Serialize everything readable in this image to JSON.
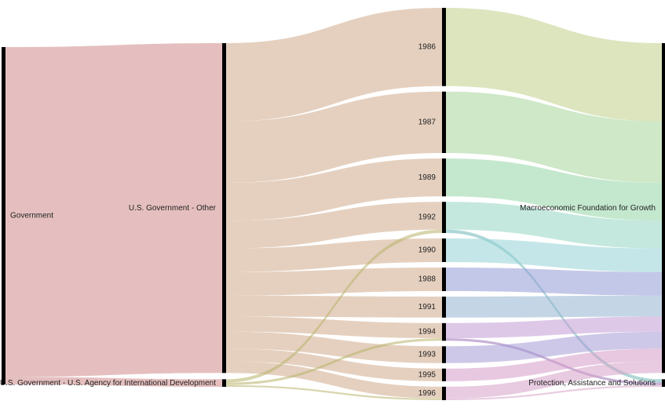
{
  "chart_data": {
    "type": "sankey",
    "nodes": [
      {
        "id": "gov",
        "label": "Government",
        "column": 0
      },
      {
        "id": "usg_other",
        "label": "U.S. Government - Other",
        "column": 1
      },
      {
        "id": "usaid",
        "label": "U.S. Government - U.S. Agency for International Development",
        "column": 1
      },
      {
        "id": "y1986",
        "label": "1986",
        "column": 2
      },
      {
        "id": "y1987",
        "label": "1987",
        "column": 2
      },
      {
        "id": "y1989",
        "label": "1989",
        "column": 2
      },
      {
        "id": "y1992",
        "label": "1992",
        "column": 2
      },
      {
        "id": "y1990",
        "label": "1990",
        "column": 2
      },
      {
        "id": "y1988",
        "label": "1988",
        "column": 2
      },
      {
        "id": "y1991",
        "label": "1991",
        "column": 2
      },
      {
        "id": "y1994",
        "label": "1994",
        "column": 2
      },
      {
        "id": "y1993",
        "label": "1993",
        "column": 2
      },
      {
        "id": "y1995",
        "label": "1995",
        "column": 2
      },
      {
        "id": "y1996",
        "label": "1996",
        "column": 2
      },
      {
        "id": "macro",
        "label": "Macroeconomic Foundation for Growth",
        "column": 3
      },
      {
        "id": "protect",
        "label": "Protection, Assistance and Solutions",
        "column": 3
      }
    ],
    "links": [
      {
        "source": "gov",
        "target": "usg_other",
        "value": 392,
        "color": "#cf8b8b"
      },
      {
        "source": "gov",
        "target": "usaid",
        "value": 9,
        "color": "#cf8b8b"
      },
      {
        "source": "usg_other",
        "target": "y1986",
        "value": 93,
        "color": "#cfa98b"
      },
      {
        "source": "usg_other",
        "target": "y1987",
        "value": 73,
        "color": "#cfa98b"
      },
      {
        "source": "usg_other",
        "target": "y1989",
        "value": 45,
        "color": "#cfa98b"
      },
      {
        "source": "usg_other",
        "target": "y1992",
        "value": 33,
        "color": "#cfa98b"
      },
      {
        "source": "usg_other",
        "target": "y1990",
        "value": 28,
        "color": "#cfa98b"
      },
      {
        "source": "usg_other",
        "target": "y1988",
        "value": 28,
        "color": "#cfa98b"
      },
      {
        "source": "usg_other",
        "target": "y1991",
        "value": 25,
        "color": "#cfa98b"
      },
      {
        "source": "usg_other",
        "target": "y1994",
        "value": 18,
        "color": "#cfa98b"
      },
      {
        "source": "usg_other",
        "target": "y1993",
        "value": 20,
        "color": "#cfa98b"
      },
      {
        "source": "usg_other",
        "target": "y1995",
        "value": 15,
        "color": "#cfa98b"
      },
      {
        "source": "usg_other",
        "target": "y1996",
        "value": 14,
        "color": "#cfa98b"
      },
      {
        "source": "usaid",
        "target": "y1992",
        "value": 4,
        "color": "#b8b36a"
      },
      {
        "source": "usaid",
        "target": "y1994",
        "value": 3,
        "color": "#b8b36a"
      },
      {
        "source": "usaid",
        "target": "y1996",
        "value": 2,
        "color": "#b8b36a"
      },
      {
        "source": "y1986",
        "target": "macro",
        "value": 93,
        "color": "#c1cf8b"
      },
      {
        "source": "y1987",
        "target": "macro",
        "value": 73,
        "color": "#a6d69a"
      },
      {
        "source": "y1989",
        "target": "macro",
        "value": 45,
        "color": "#93d6a6"
      },
      {
        "source": "y1992",
        "target": "macro",
        "value": 33,
        "color": "#93d6c1"
      },
      {
        "source": "y1992",
        "target": "protect",
        "value": 4,
        "color": "#6fb7b7"
      },
      {
        "source": "y1990",
        "target": "macro",
        "value": 28,
        "color": "#93d1d6"
      },
      {
        "source": "y1988",
        "target": "macro",
        "value": 28,
        "color": "#939bd6"
      },
      {
        "source": "y1991",
        "target": "macro",
        "value": 25,
        "color": "#93b5d1"
      },
      {
        "source": "y1994",
        "target": "macro",
        "value": 18,
        "color": "#c29ad6"
      },
      {
        "source": "y1994",
        "target": "protect",
        "value": 3,
        "color": "#9a72b7"
      },
      {
        "source": "y1993",
        "target": "macro",
        "value": 20,
        "color": "#a59ad6"
      },
      {
        "source": "y1995",
        "target": "macro",
        "value": 15,
        "color": "#d69ac9"
      },
      {
        "source": "y1996",
        "target": "macro",
        "value": 14,
        "color": "#d6a0c6"
      },
      {
        "source": "y1996",
        "target": "protect",
        "value": 2,
        "color": "#d6a0c6"
      }
    ]
  }
}
